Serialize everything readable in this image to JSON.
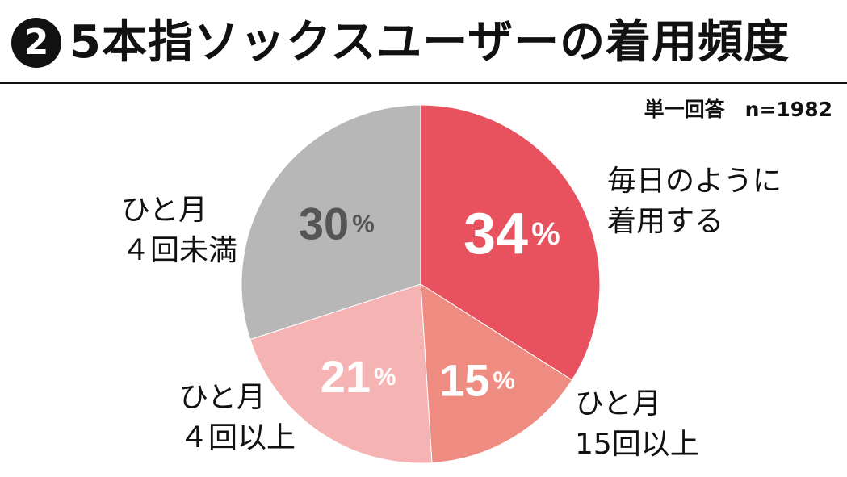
{
  "title": {
    "badge": "2",
    "text": "5本指ソックスユーザーの着用頻度"
  },
  "note": "単一回答　n=1982",
  "chart_data": {
    "type": "pie",
    "title": "5本指ソックスユーザーの着用頻度",
    "n": 1982,
    "start_angle_deg": 0,
    "direction": "clockwise",
    "slices": [
      {
        "label_lines": [
          "毎日のように",
          "着用する"
        ],
        "value": 34,
        "value_label": "34",
        "unit": "%",
        "color": "#e8525e",
        "text_color": "#ffffff"
      },
      {
        "label_lines": [
          "ひと月",
          "15回以上"
        ],
        "value": 15,
        "value_label": "15",
        "unit": "%",
        "color": "#ef8c82",
        "text_color": "#ffffff"
      },
      {
        "label_lines": [
          "ひと月",
          "４回以上"
        ],
        "value": 21,
        "value_label": "21",
        "unit": "%",
        "color": "#f5b3b3",
        "text_color": "#ffffff"
      },
      {
        "label_lines": [
          "ひと月",
          "４回未満"
        ],
        "value": 30,
        "value_label": "30",
        "unit": "%",
        "color": "#b7b7b7",
        "text_color": "#555555"
      }
    ]
  }
}
